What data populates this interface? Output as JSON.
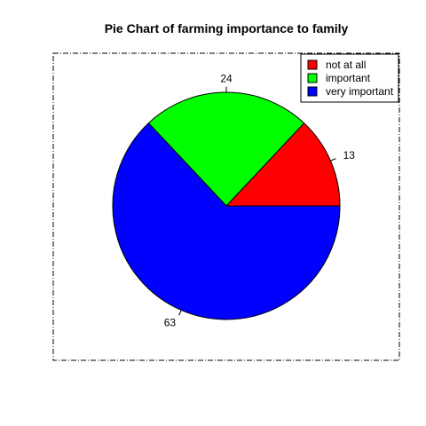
{
  "chart_data": {
    "type": "pie",
    "title": "Pie Chart of farming importance to family",
    "categories": [
      "not at all",
      "important",
      "very important"
    ],
    "values": [
      13,
      24,
      63
    ],
    "labels": [
      "13",
      "24",
      "63"
    ],
    "colors": [
      "#ff0000",
      "#00ff00",
      "#0000ff"
    ],
    "start_angle_deg": 0,
    "direction": "counterclockwise",
    "legend": {
      "position": "top-right",
      "entries": [
        "not at all",
        "important",
        "very important"
      ]
    },
    "plot_box": "dashed-border"
  }
}
